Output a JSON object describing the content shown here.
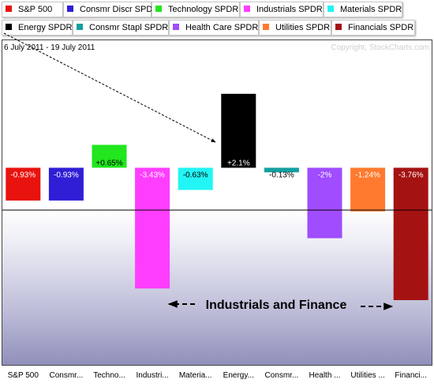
{
  "legend": [
    {
      "label": "S&P 500",
      "color": "#e8120f"
    },
    {
      "label": "Consmr Discr SPDR",
      "color": "#2f1ed6"
    },
    {
      "label": "Technology SPDR",
      "color": "#22e61e"
    },
    {
      "label": "Industrials SPDR",
      "color": "#ff3dff"
    },
    {
      "label": "Materials SPDR",
      "color": "#22f5f5"
    },
    {
      "label": "Energy SPDR",
      "color": "#000000"
    },
    {
      "label": "Consmr Stapl SPDR",
      "color": "#14a0a0"
    },
    {
      "label": "Health Care SPDR",
      "color": "#a04cff"
    },
    {
      "label": "Utilities SPDR",
      "color": "#ff7a2f"
    },
    {
      "label": "Financials SPDR",
      "color": "#a51212"
    }
  ],
  "header": {
    "date_range": "6 July 2011 - 19 July 2011",
    "copyright": "Copyright, StockCharts.com"
  },
  "annotation": {
    "text": "Industrials and Finance"
  },
  "chart_data": {
    "type": "bar",
    "categories": [
      "S&P 500",
      "Consmr...",
      "Techno...",
      "Industri...",
      "Materia...",
      "Energy...",
      "Consmr...",
      "Health ...",
      "Utilities ...",
      "Financi..."
    ],
    "values": [
      -0.93,
      -0.93,
      0.65,
      -3.43,
      -0.63,
      2.1,
      -0.13,
      -2.0,
      -1.24,
      -3.76
    ],
    "value_labels": [
      "-0.93%",
      "-0.93%",
      "+0.65%",
      "-3.43%",
      "-0.63%",
      "+2.1%",
      "-0.13%",
      "-2%",
      "-1.24%",
      "-3.76%"
    ],
    "colors": [
      "#e8120f",
      "#2f1ed6",
      "#22e61e",
      "#ff3dff",
      "#22f5f5",
      "#000000",
      "#14a0a0",
      "#a04cff",
      "#ff7a2f",
      "#a51212"
    ],
    "ylim": [
      -5.6,
      3.62
    ],
    "grid": false,
    "legend_position": "top"
  }
}
